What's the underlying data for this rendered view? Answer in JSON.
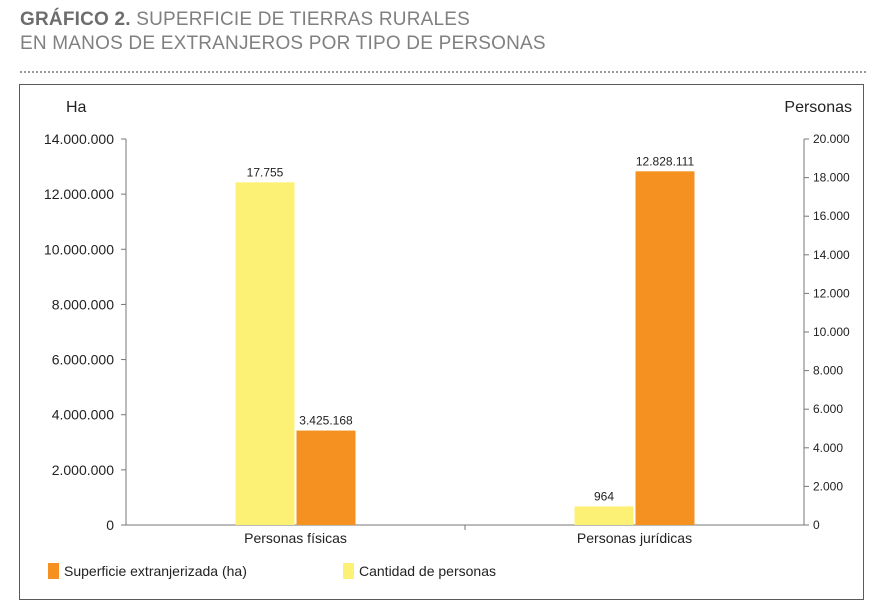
{
  "header": {
    "title_prefix": "GRÁFICO 2.",
    "title_line1": "SUPERFICIE DE TIERRAS RURALES",
    "title_line2": "EN MANOS DE EXTRANJEROS POR TIPO DE PERSONAS"
  },
  "colors": {
    "superficie": "#f59120",
    "cantidad": "#fdf175"
  },
  "chart_data": {
    "type": "bar",
    "categories": [
      "Personas físicas",
      "Personas jurídicas"
    ],
    "series": [
      {
        "name": "Cantidad de personas",
        "axis": "right",
        "values": [
          17755,
          964
        ],
        "labels": [
          "17.755",
          "964"
        ]
      },
      {
        "name": "Superficie extranjerizada (ha)",
        "axis": "left",
        "values": [
          3425168,
          12828111
        ],
        "labels": [
          "3.425.168",
          "12.828.111"
        ]
      }
    ],
    "ylabel": "Ha",
    "y2label": "Personas",
    "ylim": [
      0,
      14000000
    ],
    "y2lim": [
      0,
      20000
    ],
    "yticks": [
      "0",
      "2.000.000",
      "4.000.000",
      "6.000.000",
      "8.000.000",
      "10.000.000",
      "12.000.000",
      "14.000.000"
    ],
    "y2ticks": [
      "0",
      "2.000",
      "4.000",
      "6.000",
      "8.000",
      "10.000",
      "12.000",
      "14.000",
      "16.000",
      "18.000",
      "20.000"
    ],
    "grid": false,
    "legend_position": "bottom-left"
  },
  "legend": {
    "items": [
      {
        "label": "Superficie extranjerizada (ha)"
      },
      {
        "label": "Cantidad de personas"
      }
    ]
  }
}
